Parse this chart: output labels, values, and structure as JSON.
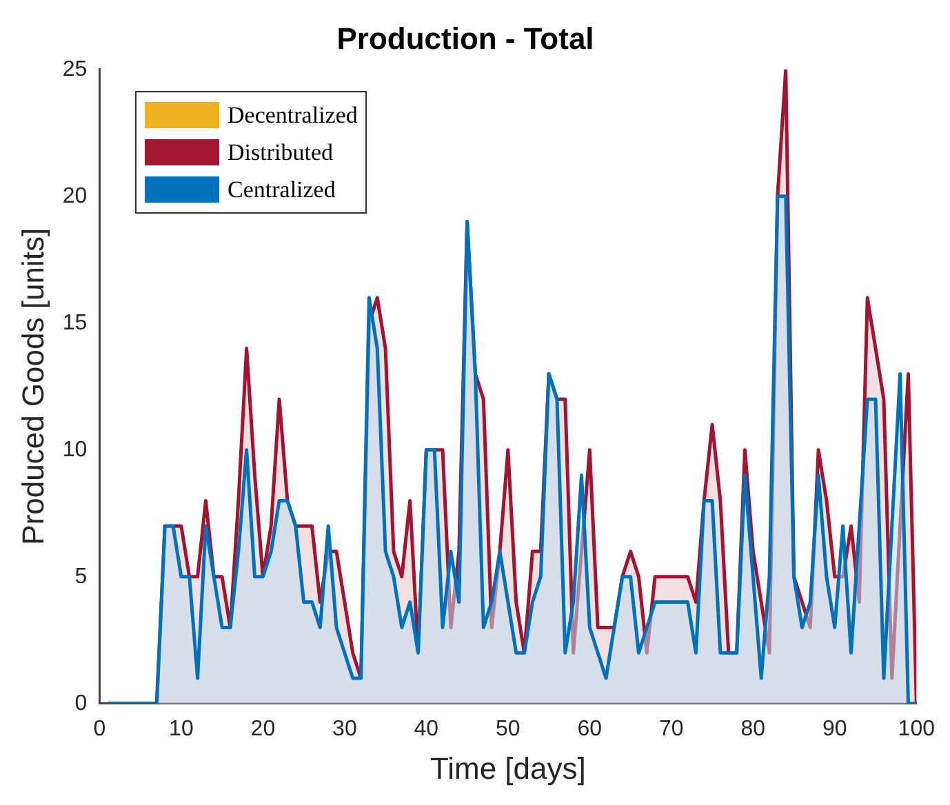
{
  "chart_data": {
    "type": "area",
    "title": "Production - Total",
    "xlabel": "Time [days]",
    "ylabel": "Produced Goods [units]",
    "x": [
      1,
      2,
      3,
      4,
      5,
      6,
      7,
      8,
      9,
      10,
      11,
      12,
      13,
      14,
      15,
      16,
      17,
      18,
      19,
      20,
      21,
      22,
      23,
      24,
      25,
      26,
      27,
      28,
      29,
      30,
      31,
      32,
      33,
      34,
      35,
      36,
      37,
      38,
      39,
      40,
      41,
      42,
      43,
      44,
      45,
      46,
      47,
      48,
      49,
      50,
      51,
      52,
      53,
      54,
      55,
      56,
      57,
      58,
      59,
      60,
      61,
      62,
      63,
      64,
      65,
      66,
      67,
      68,
      69,
      70,
      71,
      72,
      73,
      74,
      75,
      76,
      77,
      78,
      79,
      80,
      81,
      82,
      83,
      84,
      85,
      86,
      87,
      88,
      89,
      90,
      91,
      92,
      93,
      94,
      95,
      96,
      97,
      98,
      99,
      100
    ],
    "series": [
      {
        "name": "Decentralized",
        "color": "#edb120",
        "values": [
          null,
          null,
          null,
          null,
          null,
          null,
          null,
          null,
          null,
          null,
          null,
          null,
          null,
          null,
          null,
          null,
          null,
          null,
          null,
          null,
          null,
          null,
          null,
          null,
          null,
          null,
          null,
          null,
          null,
          null,
          null,
          null,
          null,
          null,
          null,
          null,
          null,
          null,
          null,
          null,
          null,
          null,
          null,
          null,
          null,
          null,
          null,
          null,
          null,
          null,
          null,
          null,
          null,
          null,
          null,
          null,
          null,
          null,
          null,
          null,
          null,
          null,
          null,
          null,
          null,
          null,
          null,
          null,
          null,
          null,
          null,
          null,
          null,
          null,
          null,
          null,
          null,
          null,
          null,
          null,
          null,
          null,
          null,
          null,
          null,
          null,
          null,
          null,
          null,
          null,
          null,
          null,
          null,
          null,
          null,
          null,
          null,
          null,
          null,
          null
        ]
      },
      {
        "name": "Distributed",
        "color": "#a2142f",
        "values": [
          0,
          0,
          0,
          0,
          0,
          0,
          0,
          7,
          7,
          7,
          5,
          5,
          8,
          5,
          5,
          3,
          8,
          14,
          9,
          5,
          7,
          12,
          8,
          7,
          7,
          7,
          4,
          6,
          6,
          4,
          2,
          1,
          15,
          16,
          14,
          6,
          5,
          8,
          2,
          10,
          10,
          10,
          3,
          6,
          19,
          13,
          12,
          3,
          6,
          10,
          4,
          2,
          6,
          6,
          13,
          12,
          12,
          2,
          6,
          10,
          3,
          3,
          3,
          5,
          6,
          5,
          2,
          5,
          5,
          5,
          5,
          5,
          4,
          8,
          11,
          8,
          2,
          2,
          10,
          6,
          4,
          2,
          20,
          25,
          5,
          4,
          3,
          10,
          8,
          5,
          5,
          7,
          4,
          16,
          14,
          12,
          1,
          7,
          13,
          0
        ]
      },
      {
        "name": "Centralized",
        "color": "#0072bd",
        "values": [
          0,
          0,
          0,
          0,
          0,
          0,
          0,
          7,
          7,
          5,
          5,
          1,
          7,
          5,
          3,
          3,
          6,
          10,
          5,
          5,
          6,
          8,
          8,
          7,
          4,
          4,
          3,
          7,
          3,
          2,
          1,
          1,
          16,
          14,
          6,
          5,
          3,
          4,
          2,
          10,
          10,
          3,
          6,
          4,
          19,
          13,
          3,
          4,
          6,
          4,
          2,
          2,
          4,
          5,
          13,
          12,
          2,
          4,
          9,
          3,
          2,
          1,
          3,
          5,
          5,
          2,
          3,
          4,
          4,
          4,
          4,
          4,
          2,
          8,
          8,
          2,
          2,
          2,
          9,
          5,
          1,
          5,
          20,
          20,
          5,
          3,
          4,
          9,
          5,
          3,
          7,
          2,
          7,
          12,
          12,
          1,
          7,
          13,
          0,
          0
        ]
      }
    ],
    "xlim": [
      0,
      100
    ],
    "xticks": [
      0,
      10,
      20,
      30,
      40,
      50,
      60,
      70,
      80,
      90,
      100
    ],
    "ylim": [
      0,
      25
    ],
    "yticks": [
      0,
      5,
      10,
      15,
      20,
      25
    ],
    "legend": "top left"
  }
}
